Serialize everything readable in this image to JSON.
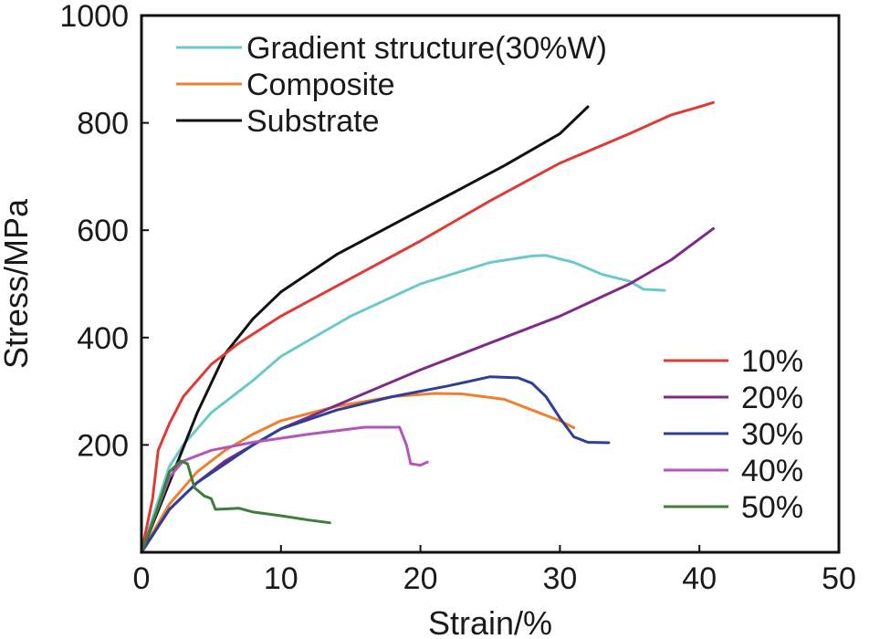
{
  "chart_data": {
    "type": "line",
    "title": "",
    "xlabel": "Strain/%",
    "ylabel": "Stress/MPa",
    "xlim": [
      0,
      50
    ],
    "ylim": [
      0,
      1000
    ],
    "x_ticks": [
      0,
      10,
      20,
      30,
      40,
      50
    ],
    "y_ticks": [
      200,
      400,
      600,
      800,
      1000
    ],
    "grid": false,
    "legend_top_placement": "top-left",
    "legend_bottom_placement": "bottom-right",
    "legend_top": [
      "Gradient structure(30%W)",
      "Composite",
      "Substrate"
    ],
    "legend_bottom": [
      "10%",
      "20%",
      "30%",
      "40%",
      "50%"
    ],
    "series": [
      {
        "name": "Gradient structure(30%W)",
        "color": "#6cc9c9",
        "legend": "top",
        "points": [
          [
            0,
            0
          ],
          [
            1,
            80
          ],
          [
            2,
            160
          ],
          [
            3,
            200
          ],
          [
            5,
            260
          ],
          [
            8,
            320
          ],
          [
            10,
            365
          ],
          [
            15,
            440
          ],
          [
            20,
            500
          ],
          [
            25,
            540
          ],
          [
            28,
            552
          ],
          [
            29,
            553
          ],
          [
            31,
            540
          ],
          [
            33,
            518
          ],
          [
            35,
            505
          ],
          [
            36,
            490
          ],
          [
            37.5,
            488
          ]
        ]
      },
      {
        "name": "Composite",
        "color": "#f07f2f",
        "legend": "top",
        "points": [
          [
            0,
            0
          ],
          [
            2,
            90
          ],
          [
            4,
            150
          ],
          [
            6,
            190
          ],
          [
            8,
            220
          ],
          [
            10,
            245
          ],
          [
            14,
            272
          ],
          [
            18,
            290
          ],
          [
            21,
            296
          ],
          [
            23,
            295
          ],
          [
            26,
            285
          ],
          [
            28,
            265
          ],
          [
            30,
            245
          ],
          [
            31,
            232
          ]
        ]
      },
      {
        "name": "Substrate",
        "color": "#111111",
        "legend": "top",
        "points": [
          [
            0,
            0
          ],
          [
            2,
            130
          ],
          [
            4,
            260
          ],
          [
            6,
            370
          ],
          [
            8,
            435
          ],
          [
            10,
            485
          ],
          [
            14,
            555
          ],
          [
            18,
            610
          ],
          [
            22,
            665
          ],
          [
            26,
            720
          ],
          [
            30,
            780
          ],
          [
            32,
            830
          ]
        ]
      },
      {
        "name": "10%",
        "color": "#e03a35",
        "legend": "bottom",
        "points": [
          [
            0,
            0
          ],
          [
            0.8,
            100
          ],
          [
            1.2,
            190
          ],
          [
            2,
            240
          ],
          [
            3,
            290
          ],
          [
            5,
            350
          ],
          [
            7,
            390
          ],
          [
            10,
            440
          ],
          [
            15,
            510
          ],
          [
            20,
            580
          ],
          [
            25,
            655
          ],
          [
            30,
            725
          ],
          [
            35,
            780
          ],
          [
            38,
            815
          ],
          [
            40,
            830
          ],
          [
            41,
            838
          ]
        ]
      },
      {
        "name": "20%",
        "color": "#7f2a86",
        "legend": "bottom",
        "points": [
          [
            0,
            0
          ],
          [
            2,
            80
          ],
          [
            4,
            130
          ],
          [
            6,
            170
          ],
          [
            8,
            200
          ],
          [
            10,
            230
          ],
          [
            15,
            285
          ],
          [
            20,
            340
          ],
          [
            25,
            390
          ],
          [
            30,
            440
          ],
          [
            35,
            500
          ],
          [
            38,
            545
          ],
          [
            41,
            603
          ]
        ]
      },
      {
        "name": "30%",
        "color": "#2d3f96",
        "legend": "bottom",
        "points": [
          [
            0,
            0
          ],
          [
            2,
            80
          ],
          [
            4,
            130
          ],
          [
            6,
            165
          ],
          [
            8,
            200
          ],
          [
            10,
            230
          ],
          [
            14,
            265
          ],
          [
            18,
            290
          ],
          [
            22,
            310
          ],
          [
            25,
            327
          ],
          [
            27,
            325
          ],
          [
            28,
            315
          ],
          [
            29,
            290
          ],
          [
            30,
            250
          ],
          [
            31,
            215
          ],
          [
            32,
            205
          ],
          [
            33.5,
            204
          ]
        ]
      },
      {
        "name": "40%",
        "color": "#b355bb",
        "legend": "bottom",
        "points": [
          [
            0,
            0
          ],
          [
            1,
            70
          ],
          [
            2,
            140
          ],
          [
            3,
            170
          ],
          [
            5,
            190
          ],
          [
            8,
            205
          ],
          [
            12,
            220
          ],
          [
            16,
            233
          ],
          [
            18.5,
            233
          ],
          [
            19,
            200
          ],
          [
            19.3,
            165
          ],
          [
            20,
            162
          ],
          [
            20.5,
            168
          ]
        ]
      },
      {
        "name": "50%",
        "color": "#3d7e3a",
        "legend": "bottom",
        "points": [
          [
            0,
            0
          ],
          [
            1,
            70
          ],
          [
            2,
            150
          ],
          [
            2.8,
            170
          ],
          [
            3.3,
            165
          ],
          [
            3.8,
            120
          ],
          [
            4.5,
            105
          ],
          [
            5,
            100
          ],
          [
            5.3,
            80
          ],
          [
            7,
            82
          ],
          [
            8,
            75
          ],
          [
            10,
            68
          ],
          [
            12,
            60
          ],
          [
            13.5,
            55
          ]
        ]
      }
    ]
  }
}
